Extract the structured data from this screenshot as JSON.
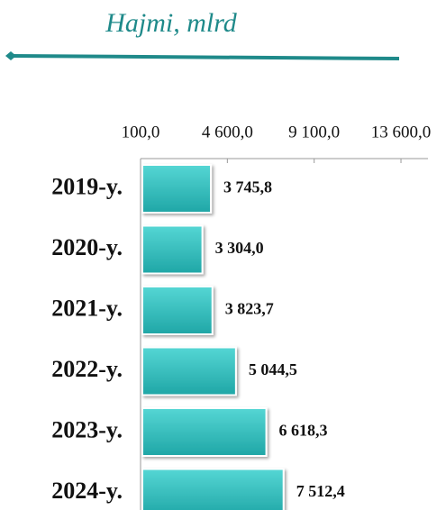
{
  "chart_data": {
    "type": "bar",
    "orientation": "horizontal",
    "title": "Hajmi, mlrd",
    "categories": [
      "2019-y.",
      "2020-y.",
      "2021-y.",
      "2022-y.",
      "2023-y.",
      "2024-y."
    ],
    "values": [
      3745.8,
      3304.0,
      3823.7,
      5044.5,
      6618.3,
      7512.4
    ],
    "value_labels": [
      "3 745,8",
      "3 304,0",
      "3 823,7",
      "5 044,5",
      "6 618,3",
      "7 512,4"
    ],
    "color": "#33c2c0",
    "xlim": [
      100,
      15000
    ],
    "xticks": [
      {
        "value": 100,
        "label": "100,0"
      },
      {
        "value": 4600,
        "label": "4 600,0"
      },
      {
        "value": 9100,
        "label": "9 100,0"
      },
      {
        "value": 13600,
        "label": "13 600,0"
      }
    ]
  }
}
